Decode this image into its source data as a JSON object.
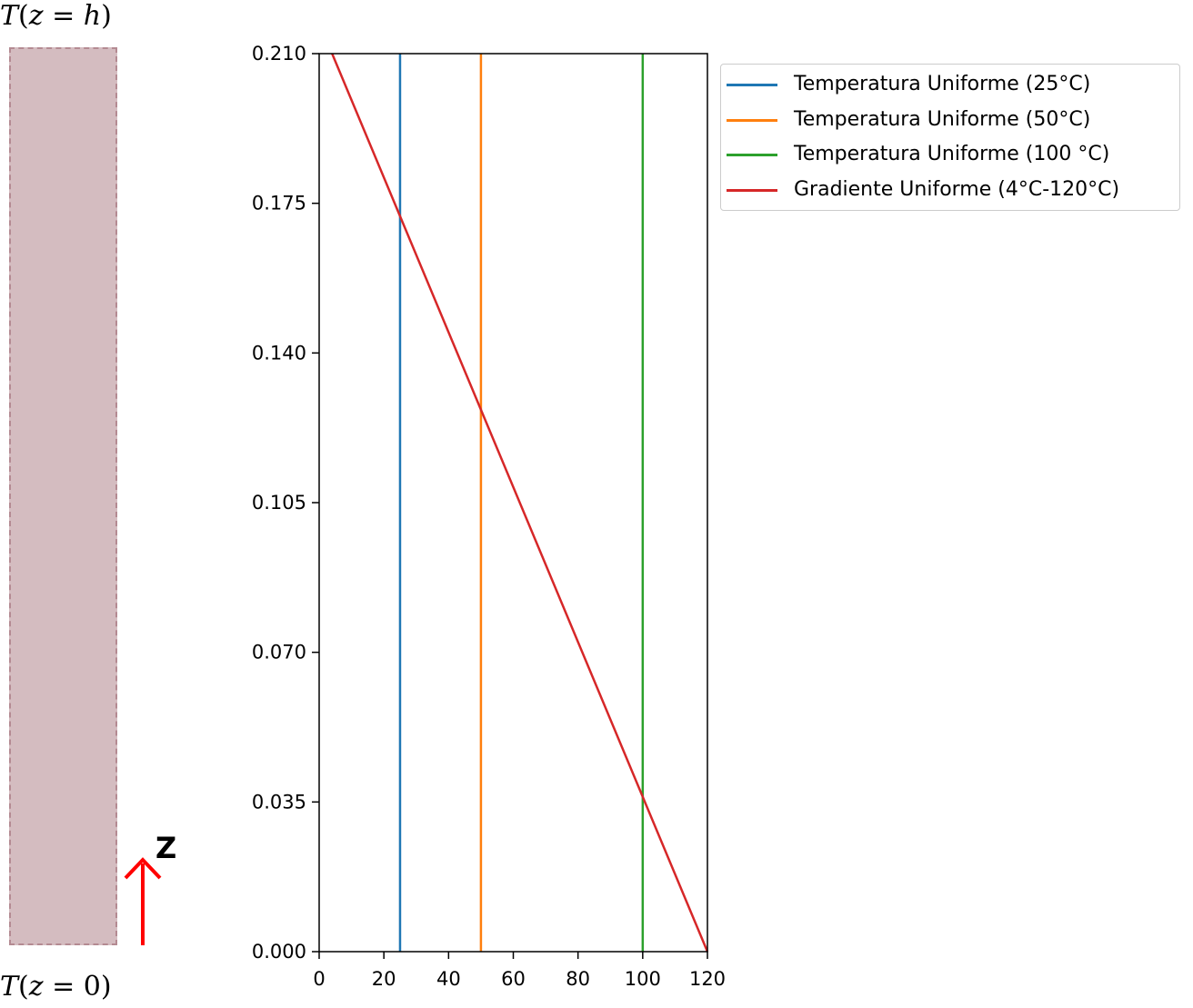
{
  "left_panel": {
    "top_label": {
      "func": "T",
      "var": "z",
      "rhs": "h"
    },
    "bottom_label": {
      "func": "T",
      "var": "z",
      "rhs": "0"
    },
    "axis_label": "Z",
    "slab_color": "#d4bcc0",
    "arrow_color": "#ff0000"
  },
  "chart_data": {
    "type": "line",
    "xlim": [
      0,
      120
    ],
    "ylim": [
      0,
      0.21
    ],
    "x_ticks": [
      "0",
      "20",
      "40",
      "60",
      "80",
      "100",
      "120"
    ],
    "y_ticks": [
      "0.000",
      "0.035",
      "0.070",
      "0.105",
      "0.140",
      "0.175",
      "0.210"
    ],
    "title": "",
    "xlabel": "",
    "ylabel": "",
    "legend_position": "outside-top-right",
    "series": [
      {
        "name": "Temperatura Uniforme (25°C)",
        "color": "#1f77b4",
        "x": [
          25,
          25
        ],
        "y": [
          0,
          0.21
        ]
      },
      {
        "name": "Temperatura Uniforme (50°C)",
        "color": "#ff7f0e",
        "x": [
          50,
          50
        ],
        "y": [
          0,
          0.21
        ]
      },
      {
        "name": "Temperatura Uniforme (100 °C)",
        "color": "#2ca02c",
        "x": [
          100,
          100
        ],
        "y": [
          0,
          0.21
        ]
      },
      {
        "name": "Gradiente Uniforme (4°C-120°C)",
        "color": "#d62728",
        "x": [
          120,
          4
        ],
        "y": [
          0,
          0.21
        ]
      }
    ]
  }
}
